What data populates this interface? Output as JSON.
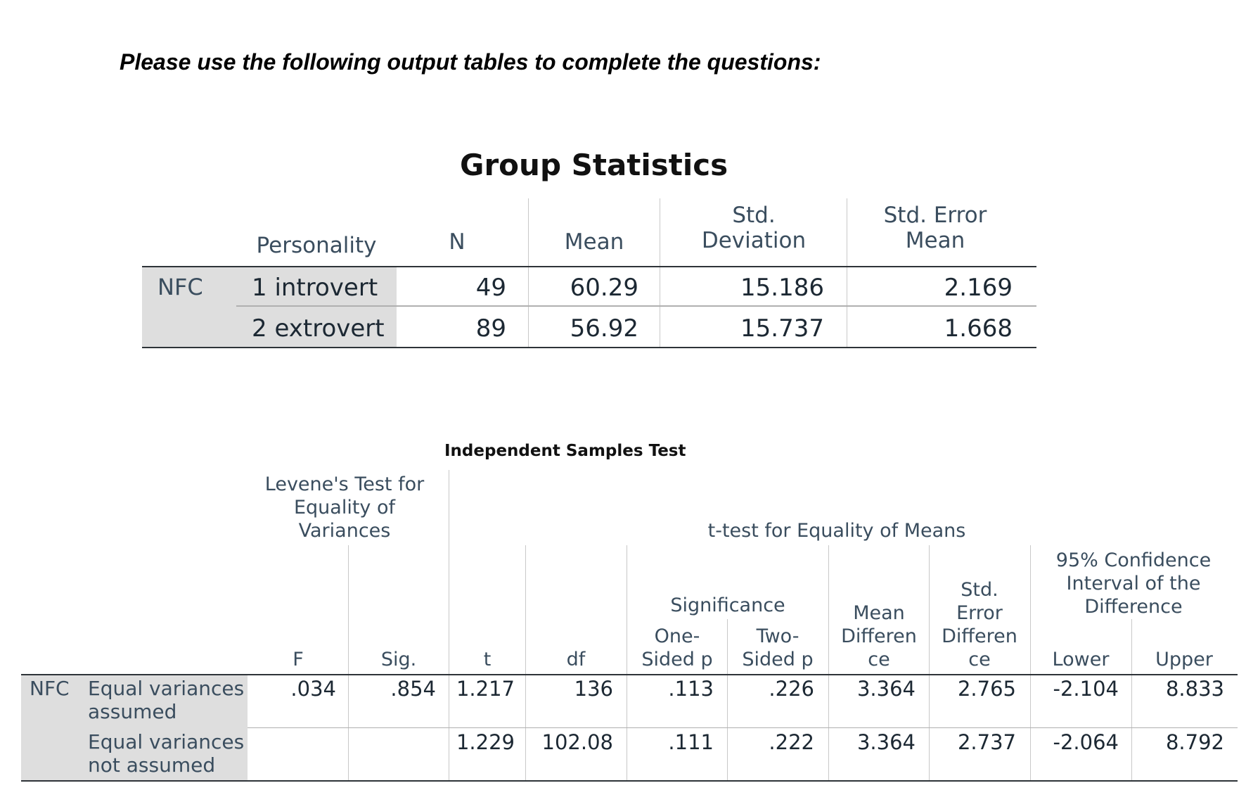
{
  "instruction": "Please use the following output tables to complete the questions:",
  "group_statistics": {
    "title": "Group Statistics",
    "headers": {
      "personality": "Personality",
      "n": "N",
      "mean": "Mean",
      "std_dev_1": "Std.",
      "std_dev_2": "Deviation",
      "std_err_1": "Std. Error",
      "std_err_2": "Mean"
    },
    "row_label": "NFC",
    "rows": [
      {
        "group": "1 introvert",
        "n": "49",
        "mean": "60.29",
        "sd": "15.186",
        "se": "2.169"
      },
      {
        "group": "2 extrovert",
        "n": "89",
        "mean": "56.92",
        "sd": "15.737",
        "se": "1.668"
      }
    ]
  },
  "independent_samples_test": {
    "title": "Independent Samples Test",
    "headers": {
      "levene_1": "Levene's Test for",
      "levene_2": "Equality of",
      "levene_3": "Variances",
      "ttest": "t-test for Equality of Means",
      "significance": "Significance",
      "ci_1": "95% Confidence",
      "ci_2": "Interval of the",
      "ci_3": "Difference",
      "f": "F",
      "sig": "Sig.",
      "t": "t",
      "df": "df",
      "one_sided_1": "One-",
      "one_sided_2": "Sided p",
      "two_sided_1": "Two-",
      "two_sided_2": "Sided p",
      "mean_diff_1": "Mean",
      "mean_diff_2": "Differen",
      "mean_diff_3": "ce",
      "se_diff_1": "Std.",
      "se_diff_2": "Error",
      "se_diff_3": "Differen",
      "se_diff_4": "ce",
      "lower": "Lower",
      "upper": "Upper"
    },
    "row_label": "NFC",
    "rows": [
      {
        "label_1": "Equal variances",
        "label_2": "assumed",
        "f": ".034",
        "sig": ".854",
        "t": "1.217",
        "df": "136",
        "one_p": ".113",
        "two_p": ".226",
        "mean_diff": "3.364",
        "se_diff": "2.765",
        "lower": "-2.104",
        "upper": "8.833"
      },
      {
        "label_1": "Equal variances",
        "label_2": "not assumed",
        "f": "",
        "sig": "",
        "t": "1.229",
        "df": "102.08",
        "one_p": ".111",
        "two_p": ".222",
        "mean_diff": "3.364",
        "se_diff": "2.737",
        "lower": "-2.064",
        "upper": "8.792"
      }
    ]
  }
}
